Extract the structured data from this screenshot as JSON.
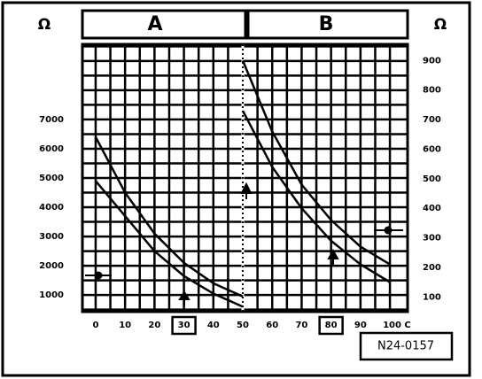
{
  "chart_data": {
    "type": "line",
    "ylabel": "Ω",
    "y2label": "Ω",
    "annotations": [
      "A",
      "B",
      "N24-0157"
    ],
    "x": [
      0,
      10,
      20,
      30,
      40,
      50,
      60,
      70,
      80,
      90,
      100
    ],
    "xlim": [
      -4.5,
      106
    ],
    "xticks": [
      0,
      10,
      20,
      30,
      40,
      50,
      60,
      70,
      80,
      90,
      {
        "value": 100,
        "label": "100 C"
      }
    ],
    "highlighted_xticks": [
      30,
      80
    ],
    "divider_x": 50,
    "ylim": [
      430,
      9570
    ],
    "yticks": [
      1000,
      2000,
      3000,
      4000,
      5000,
      6000,
      7000
    ],
    "y2lim": [
      50,
      955
    ],
    "y2ticks": [
      100,
      200,
      300,
      400,
      500,
      600,
      700,
      800,
      900
    ],
    "grid": true,
    "series": [
      {
        "color": "#000000",
        "values": [
          6400,
          4500,
          3100,
          2100,
          1400,
          950,
          null,
          null,
          null,
          null,
          null
        ]
      },
      {
        "color": "#000000",
        "values": [
          4900,
          3700,
          2500,
          1650,
          1050,
          600,
          null,
          null,
          null,
          null,
          null
        ]
      },
      {
        "color": "#000000",
        "axis": "y2",
        "values": [
          null,
          null,
          null,
          null,
          null,
          900,
          660,
          480,
          360,
          270,
          210
        ]
      },
      {
        "color": "#000000",
        "axis": "y2",
        "values": [
          null,
          null,
          null,
          null,
          null,
          730,
          540,
          400,
          290,
          210,
          150
        ]
      }
    ]
  }
}
